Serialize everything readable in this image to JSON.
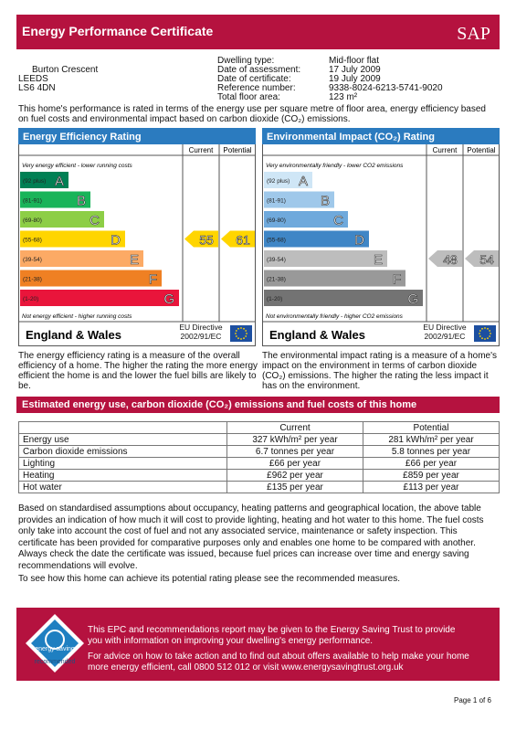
{
  "header": {
    "title": "Energy Performance Certificate",
    "logo": "SAP"
  },
  "address": [
    "Burton Crescent",
    "LEEDS",
    "LS6 4DN"
  ],
  "details": [
    {
      "label": "Dwelling type:",
      "value": "Mid-floor flat"
    },
    {
      "label": "Date of assessment:",
      "value": "17 July 2009"
    },
    {
      "label": "Date of certificate:",
      "value": "19 July 2009"
    },
    {
      "label": "Reference number:",
      "value": "9338-8024-6213-5741-9020"
    },
    {
      "label": "Total floor area:",
      "value": "123 m²"
    }
  ],
  "intro": "This home's performance is rated in terms of the energy use per square metre of floor area, energy efficiency based on fuel costs and environmental impact based on carbon dioxide (CO₂) emissions.",
  "charts": [
    {
      "title": "Energy Efficiency Rating",
      "col_current": "Current",
      "col_potential": "Potential",
      "top_note": "Very energy efficient - lower running costs",
      "bottom_note": "Not energy efficient - higher running costs",
      "bands": [
        {
          "range": "(92 plus)",
          "letter": "A",
          "color": "#008054"
        },
        {
          "range": "(81-91)",
          "letter": "B",
          "color": "#19b459"
        },
        {
          "range": "(69-80)",
          "letter": "C",
          "color": "#8dce46"
        },
        {
          "range": "(55-68)",
          "letter": "D",
          "color": "#ffd500"
        },
        {
          "range": "(39-54)",
          "letter": "E",
          "color": "#fcaa65"
        },
        {
          "range": "(21-38)",
          "letter": "F",
          "color": "#ef8023"
        },
        {
          "range": "(1-20)",
          "letter": "G",
          "color": "#e9153b"
        }
      ],
      "current": 55,
      "potential": 61,
      "region": "England & Wales",
      "directive": "EU Directive 2002/91/EC",
      "description": "The energy efficiency rating is a measure of the overall efficiency of a home. The higher the rating the more energy efficient the home is and the lower the fuel bills are likely to be."
    },
    {
      "title": "Environmental Impact (CO₂) Rating",
      "col_current": "Current",
      "col_potential": "Potential",
      "top_note": "Very environmentally friendly - lower CO2 emissions",
      "bottom_note": "Not environmentally friendly - higher CO2 emissions",
      "bands": [
        {
          "range": "(92 plus)",
          "letter": "A",
          "color": "#cfe6f6"
        },
        {
          "range": "(81-91)",
          "letter": "B",
          "color": "#9fc8ea"
        },
        {
          "range": "(69-80)",
          "letter": "C",
          "color": "#6fa9dc"
        },
        {
          "range": "(55-68)",
          "letter": "D",
          "color": "#3f86c6"
        },
        {
          "range": "(39-54)",
          "letter": "E",
          "color": "#bdbdbd"
        },
        {
          "range": "(21-38)",
          "letter": "F",
          "color": "#999999"
        },
        {
          "range": "(1-20)",
          "letter": "G",
          "color": "#737373"
        }
      ],
      "current": 48,
      "potential": 54,
      "region": "England & Wales",
      "directive": "EU Directive 2002/91/EC",
      "description": "The environmental impact rating is a measure of a home's impact on the environment in terms of carbon dioxide (CO₂) emissions. The higher the rating the less impact it has on the environment."
    }
  ],
  "section_title": "Estimated energy use, carbon dioxide (CO₂) emissions and fuel costs of this home",
  "table": {
    "header": [
      "Current",
      "Potential"
    ],
    "rows": [
      [
        "Energy use",
        "327 kWh/m² per year",
        "281 kWh/m² per year"
      ],
      [
        "Carbon dioxide emissions",
        "6.7 tonnes per year",
        "5.8 tonnes per year"
      ],
      [
        "Lighting",
        "£66 per year",
        "£66 per year"
      ],
      [
        "Heating",
        "£962 per year",
        "£859 per year"
      ],
      [
        "Hot water",
        "£135 per year",
        "£113 per year"
      ]
    ]
  },
  "paragraphs": [
    "Based on standardised assumptions about occupancy, heating patterns and geographical location, the above table provides an indication of how much it will cost to provide lighting, heating and hot water to this home. The fuel costs only take into account the cost of fuel and not any associated service, maintenance or safety inspection. This certificate has been provided for comparative purposes only and enables one home to be compared with another. Always check the date the certificate was issued, because fuel prices can increase over time and energy saving recommendations will evolve.",
    "To see how this home can achieve its potential rating please see the recommended measures."
  ],
  "footer": {
    "logo_top": "energy saving",
    "logo_bottom": "recommended",
    "lines": [
      "This EPC and recommendations report may be given to the Energy Saving Trust to provide you with information on improving your dwelling's energy performance.",
      "For advice on how to take action and to find out about offers available to help make your home more energy efficient, call 0800 512 012 or visit www.energysavingtrust.org.uk"
    ]
  },
  "page": "Page 1 of 6"
}
